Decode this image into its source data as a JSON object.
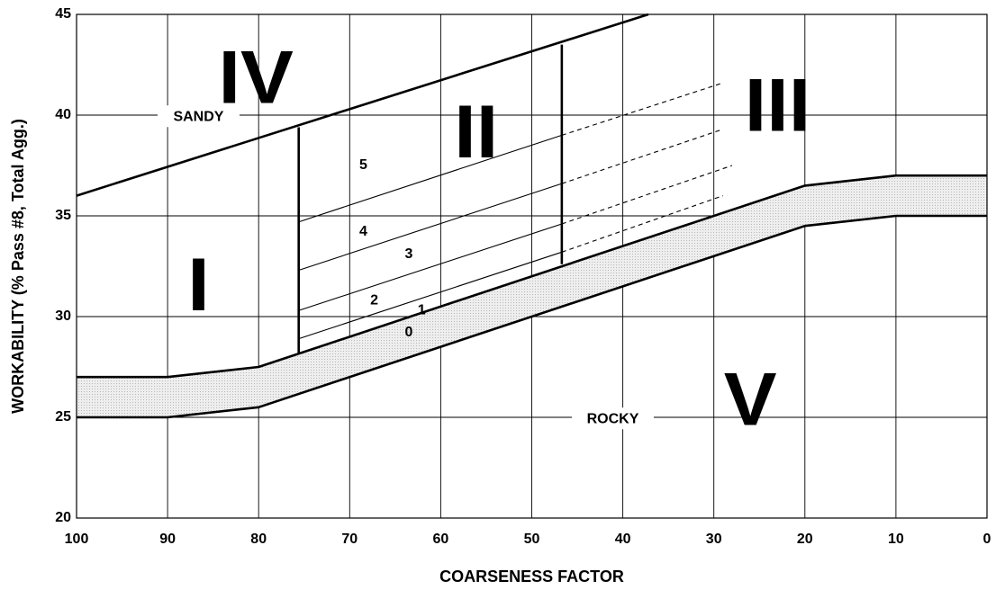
{
  "chart_data": {
    "type": "line",
    "xlabel": "COARSENESS FACTOR",
    "ylabel": "WORKABILITY (% Pass #8, Total Agg.)",
    "xlim": [
      100,
      0
    ],
    "ylim": [
      20,
      45
    ],
    "x_ticks": [
      "100",
      "90",
      "80",
      "70",
      "60",
      "50",
      "40",
      "30",
      "20",
      "10",
      "0"
    ],
    "y_ticks": [
      "20",
      "25",
      "30",
      "35",
      "40",
      "45"
    ],
    "grid": true,
    "series": [
      {
        "role": "band-upper",
        "points": [
          [
            100,
            27
          ],
          [
            90,
            27
          ],
          [
            80,
            27.5
          ],
          [
            20,
            36.5
          ],
          [
            10,
            37
          ],
          [
            0,
            37
          ]
        ]
      },
      {
        "role": "band-lower",
        "points": [
          [
            100,
            25
          ],
          [
            90,
            25
          ],
          [
            80,
            25.5
          ],
          [
            20,
            34.5
          ],
          [
            10,
            35
          ],
          [
            0,
            35
          ]
        ]
      },
      {
        "role": "sandy-boundary",
        "points": [
          [
            100,
            36
          ],
          [
            37.2,
            45
          ]
        ]
      },
      {
        "role": "zone-ii-left",
        "points": [
          [
            75.6,
            28.2
          ],
          [
            75.6,
            39.4
          ]
        ]
      },
      {
        "role": "zone-ii-right",
        "points": [
          [
            46.7,
            32.6
          ],
          [
            46.7,
            43.5
          ]
        ]
      },
      {
        "role": "subzone",
        "points": [
          [
            75.6,
            28.9
          ],
          [
            46.7,
            33.2
          ]
        ],
        "ext": [
          [
            29,
            36
          ]
        ]
      },
      {
        "role": "subzone",
        "points": [
          [
            75.6,
            30.3
          ],
          [
            46.7,
            34.6
          ]
        ],
        "ext": [
          [
            28,
            37.5
          ]
        ]
      },
      {
        "role": "subzone",
        "points": [
          [
            75.6,
            32.3
          ],
          [
            46.7,
            36.6
          ]
        ],
        "ext": [
          [
            29,
            39.3
          ]
        ]
      },
      {
        "role": "subzone",
        "points": [
          [
            75.6,
            34.7
          ],
          [
            46.7,
            39
          ]
        ],
        "ext": [
          [
            29,
            41.6
          ]
        ]
      }
    ],
    "annotations": [
      {
        "text": "IV",
        "x": 80.3,
        "y": 41.6,
        "kind": "zone"
      },
      {
        "text": "II",
        "x": 56.1,
        "y": 38.9,
        "kind": "zone"
      },
      {
        "text": "III",
        "x": 23,
        "y": 40.2,
        "kind": "zone"
      },
      {
        "text": "I",
        "x": 86.6,
        "y": 31.3,
        "kind": "zone"
      },
      {
        "text": "V",
        "x": 26,
        "y": 25.6,
        "kind": "zone"
      },
      {
        "text": "SANDY",
        "x": 86.6,
        "y": 39.9,
        "kind": "label"
      },
      {
        "text": "ROCKY",
        "x": 41.1,
        "y": 24.9,
        "kind": "label"
      },
      {
        "text": "5",
        "x": 68.5,
        "y": 37.5,
        "kind": "num"
      },
      {
        "text": "4",
        "x": 68.5,
        "y": 34.2,
        "kind": "num"
      },
      {
        "text": "3",
        "x": 63.5,
        "y": 33.1,
        "kind": "num"
      },
      {
        "text": "2",
        "x": 67.3,
        "y": 30.8,
        "kind": "num"
      },
      {
        "text": "1",
        "x": 62.1,
        "y": 30.3,
        "kind": "num"
      },
      {
        "text": "0",
        "x": 63.5,
        "y": 29.2,
        "kind": "num"
      }
    ],
    "colors": {
      "band_fill": "#e0e0e0",
      "line": "#000000",
      "grid": "#000000"
    }
  }
}
